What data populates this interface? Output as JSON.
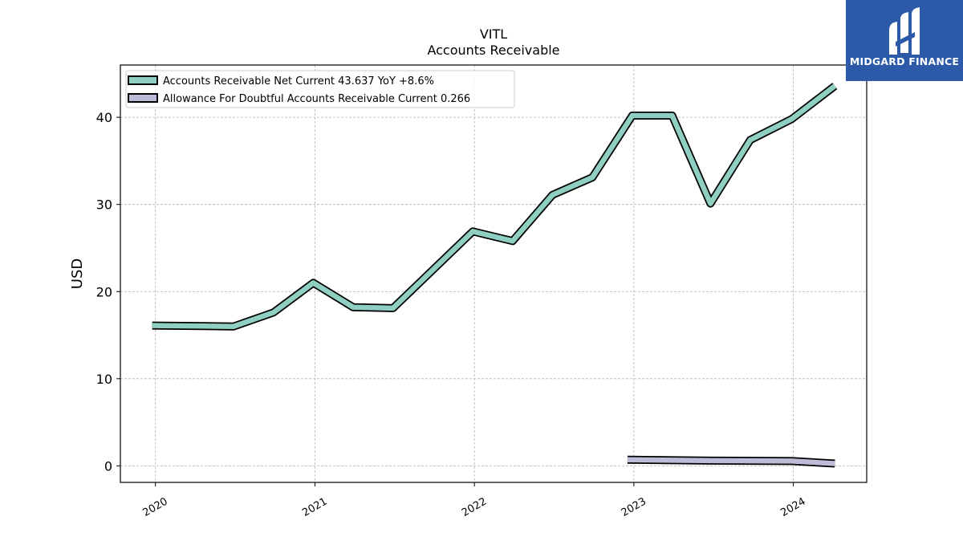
{
  "chart_data": {
    "type": "line",
    "title": "VITL",
    "subtitle": "Accounts Receivable",
    "ylabel": "USD",
    "xlabel": "",
    "ylim": [
      -1.9,
      46.0
    ],
    "xlim": [
      2019.78,
      2024.46
    ],
    "yticks": [
      0,
      10,
      20,
      30,
      40
    ],
    "xticks": [
      {
        "value": 2020.0,
        "label": "2020"
      },
      {
        "value": 2021.0,
        "label": "2021"
      },
      {
        "value": 2022.0,
        "label": "2022"
      },
      {
        "value": 2023.0,
        "label": "2023"
      },
      {
        "value": 2024.0,
        "label": "2024"
      }
    ],
    "grid": true,
    "legend_position": "top-left",
    "series": [
      {
        "name": "Accounts Receivable Net Current",
        "legend_label": "Accounts Receivable Net Current  43.637 YoY +8.6%",
        "color": "#8ecfc2",
        "points": [
          [
            2019.98,
            16.1
          ],
          [
            2020.49,
            16.0
          ],
          [
            2020.74,
            17.6
          ],
          [
            2020.99,
            21.0
          ],
          [
            2021.24,
            18.2
          ],
          [
            2021.49,
            18.1
          ],
          [
            2021.74,
            22.5
          ],
          [
            2021.99,
            26.9
          ],
          [
            2022.24,
            25.8
          ],
          [
            2022.49,
            31.1
          ],
          [
            2022.74,
            33.1
          ],
          [
            2022.99,
            40.2
          ],
          [
            2023.24,
            40.2
          ],
          [
            2023.48,
            30.1
          ],
          [
            2023.73,
            37.4
          ],
          [
            2023.99,
            39.8
          ],
          [
            2024.26,
            43.6
          ]
        ]
      },
      {
        "name": "Allowance For Doubtful Accounts Receivable Current",
        "legend_label": "Allowance For Doubtful Accounts Receivable Current  0.266",
        "color": "#bcbcd8",
        "points": [
          [
            2022.96,
            0.7
          ],
          [
            2023.48,
            0.6
          ],
          [
            2023.99,
            0.55
          ],
          [
            2024.26,
            0.266
          ]
        ]
      }
    ]
  },
  "logo": {
    "text": "MIDGARD FINANCE",
    "bg_color": "#2c5aa8"
  }
}
